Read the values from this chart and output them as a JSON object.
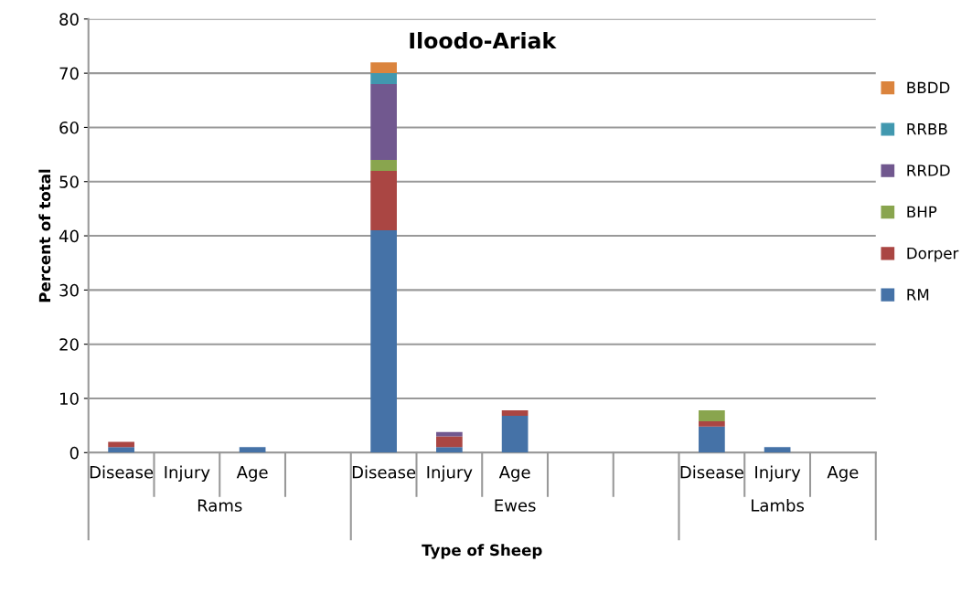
{
  "chart_data": {
    "type": "bar",
    "stacked": true,
    "title": "Iloodo-Ariak",
    "xlabel": "Type of Sheep",
    "ylabel": "Percent of total",
    "categories": [
      "Disease",
      "Injury",
      "Age",
      null,
      "Disease",
      "Injury",
      "Age",
      null,
      null,
      "Disease",
      "Injury",
      "Age"
    ],
    "annotations": [
      "Rams",
      "Ewes",
      "Lambs"
    ],
    "series": [
      {
        "name": "RM",
        "color": "#4572a7",
        "values": [
          1,
          0,
          1,
          0,
          41,
          1,
          6.8,
          0,
          0,
          4.8,
          1,
          0
        ]
      },
      {
        "name": "Dorper",
        "color": "#aa4643",
        "values": [
          1,
          0,
          0,
          0,
          11,
          2,
          1,
          0,
          0,
          1,
          0,
          0
        ]
      },
      {
        "name": "BHP",
        "color": "#89a54e",
        "values": [
          0,
          0,
          0,
          0,
          2,
          0,
          0,
          0,
          0,
          2,
          0,
          0
        ]
      },
      {
        "name": "RRDD",
        "color": "#71588f",
        "values": [
          0,
          0,
          0,
          0,
          14,
          0.8,
          0,
          0,
          0,
          0,
          0,
          0
        ]
      },
      {
        "name": "RRBB",
        "color": "#4198af",
        "values": [
          0,
          0,
          0,
          0,
          2,
          0,
          0,
          0,
          0,
          0,
          0,
          0
        ]
      },
      {
        "name": "BBDD",
        "color": "#db843d",
        "values": [
          0,
          0,
          0,
          0,
          2,
          0,
          0,
          0,
          0,
          0,
          0,
          0
        ]
      }
    ],
    "ylim": [
      0,
      80
    ],
    "yticks": [
      0,
      10,
      20,
      30,
      40,
      50,
      60,
      70,
      80
    ],
    "grid": "y",
    "legend": "right"
  }
}
